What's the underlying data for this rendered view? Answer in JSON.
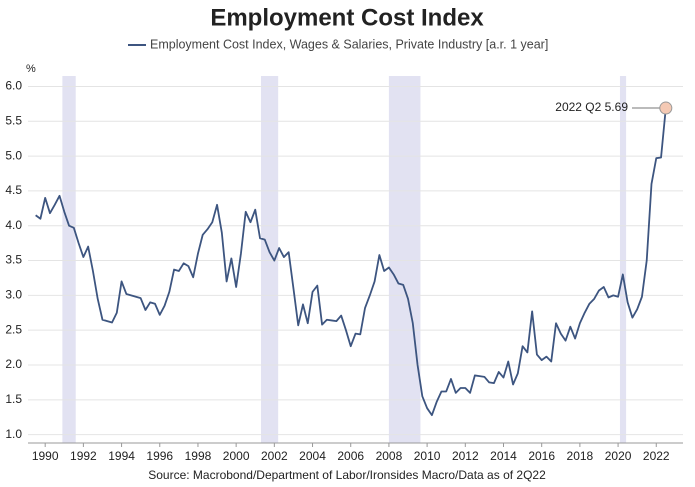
{
  "chart_data": {
    "type": "line",
    "title": "Employment Cost Index",
    "y_unit": "%",
    "source": "Source: Macrobond/Department of Labor/Ironsides Macro/Data as of 2Q22",
    "annotation": "2022 Q2 5.69",
    "x": [
      1989.5,
      1989.75,
      1990,
      1990.25,
      1990.5,
      1990.75,
      1991,
      1991.25,
      1991.5,
      1991.75,
      1992,
      1992.25,
      1992.5,
      1992.75,
      1993,
      1993.25,
      1993.5,
      1993.75,
      1994,
      1994.25,
      1994.5,
      1994.75,
      1995,
      1995.25,
      1995.5,
      1995.75,
      1996,
      1996.25,
      1996.5,
      1996.75,
      1997,
      1997.25,
      1997.5,
      1997.75,
      1998,
      1998.25,
      1998.5,
      1998.75,
      1999,
      1999.25,
      1999.5,
      1999.75,
      2000,
      2000.25,
      2000.5,
      2000.75,
      2001,
      2001.25,
      2001.5,
      2001.75,
      2002,
      2002.25,
      2002.5,
      2002.75,
      2003,
      2003.25,
      2003.5,
      2003.75,
      2004,
      2004.25,
      2004.5,
      2004.75,
      2005,
      2005.25,
      2005.5,
      2005.75,
      2006,
      2006.25,
      2006.5,
      2006.75,
      2007,
      2007.25,
      2007.5,
      2007.75,
      2008,
      2008.25,
      2008.5,
      2008.75,
      2009,
      2009.25,
      2009.5,
      2009.75,
      2010,
      2010.25,
      2010.5,
      2010.75,
      2011,
      2011.25,
      2011.5,
      2011.75,
      2012,
      2012.25,
      2012.5,
      2012.75,
      2013,
      2013.25,
      2013.5,
      2013.75,
      2014,
      2014.25,
      2014.5,
      2014.75,
      2015,
      2015.25,
      2015.5,
      2015.75,
      2016,
      2016.25,
      2016.5,
      2016.75,
      2017,
      2017.25,
      2017.5,
      2017.75,
      2018,
      2018.25,
      2018.5,
      2018.75,
      2019,
      2019.25,
      2019.5,
      2019.75,
      2020,
      2020.25,
      2020.5,
      2020.75,
      2021,
      2021.25,
      2021.5,
      2021.75,
      2022,
      2022.25,
      2022.5
    ],
    "series": [
      {
        "name": "Employment Cost Index, Wages & Salaries, Private Industry [a.r. 1 year]",
        "color": "#3d5580",
        "values": [
          4.15,
          4.1,
          4.4,
          4.18,
          4.3,
          4.43,
          4.2,
          4.0,
          3.97,
          3.75,
          3.55,
          3.7,
          3.35,
          2.95,
          2.65,
          2.63,
          2.61,
          2.75,
          3.2,
          3.02,
          3.0,
          2.98,
          2.96,
          2.79,
          2.9,
          2.88,
          2.72,
          2.85,
          3.05,
          3.37,
          3.35,
          3.46,
          3.42,
          3.26,
          3.6,
          3.87,
          3.95,
          4.05,
          4.3,
          3.9,
          3.2,
          3.53,
          3.12,
          3.6,
          4.2,
          4.05,
          4.23,
          3.82,
          3.8,
          3.62,
          3.5,
          3.68,
          3.55,
          3.62,
          3.1,
          2.57,
          2.87,
          2.6,
          3.05,
          3.14,
          2.58,
          2.65,
          2.64,
          2.63,
          2.71,
          2.5,
          2.27,
          2.45,
          2.44,
          2.82,
          3.0,
          3.2,
          3.58,
          3.35,
          3.4,
          3.3,
          3.17,
          3.15,
          2.95,
          2.6,
          2.0,
          1.55,
          1.38,
          1.28,
          1.47,
          1.62,
          1.62,
          1.8,
          1.6,
          1.67,
          1.67,
          1.6,
          1.85,
          1.84,
          1.83,
          1.75,
          1.74,
          1.9,
          1.82,
          2.05,
          1.72,
          1.88,
          2.27,
          2.18,
          2.77,
          2.15,
          2.07,
          2.12,
          2.05,
          2.6,
          2.45,
          2.35,
          2.55,
          2.38,
          2.6,
          2.75,
          2.88,
          2.95,
          3.07,
          3.12,
          2.97,
          3.0,
          2.98,
          3.3,
          2.9,
          2.68,
          2.8,
          2.98,
          3.5,
          4.6,
          4.97,
          4.98,
          5.69
        ]
      }
    ],
    "shaded_periods": [
      [
        1990.9,
        1991.6
      ],
      [
        2001.3,
        2002.2
      ],
      [
        2008.0,
        2009.65
      ],
      [
        2020.1,
        2020.42
      ]
    ],
    "shade_color": "#e2e2f2",
    "xlim": [
      1989.1,
      2023.4
    ],
    "xticks": [
      1990,
      1992,
      1994,
      1996,
      1998,
      2000,
      2002,
      2004,
      2006,
      2008,
      2010,
      2012,
      2014,
      2016,
      2018,
      2020,
      2022
    ],
    "ylim": [
      0.88,
      6.15
    ],
    "yticks": [
      {
        "value": 1,
        "label": "1.0"
      },
      {
        "value": 1.5,
        "label": "1.5"
      },
      {
        "value": 2,
        "label": "2.0"
      },
      {
        "value": 2.5,
        "label": "2.5"
      },
      {
        "value": 3,
        "label": "3.0"
      },
      {
        "value": 3.5,
        "label": "3.5"
      },
      {
        "value": 4,
        "label": "4.0"
      },
      {
        "value": 4.5,
        "label": "4.5"
      },
      {
        "value": 5,
        "label": "5.0"
      },
      {
        "value": 5.5,
        "label": "5.5"
      },
      {
        "value": 6,
        "label": "6.0"
      }
    ],
    "grid": true
  }
}
